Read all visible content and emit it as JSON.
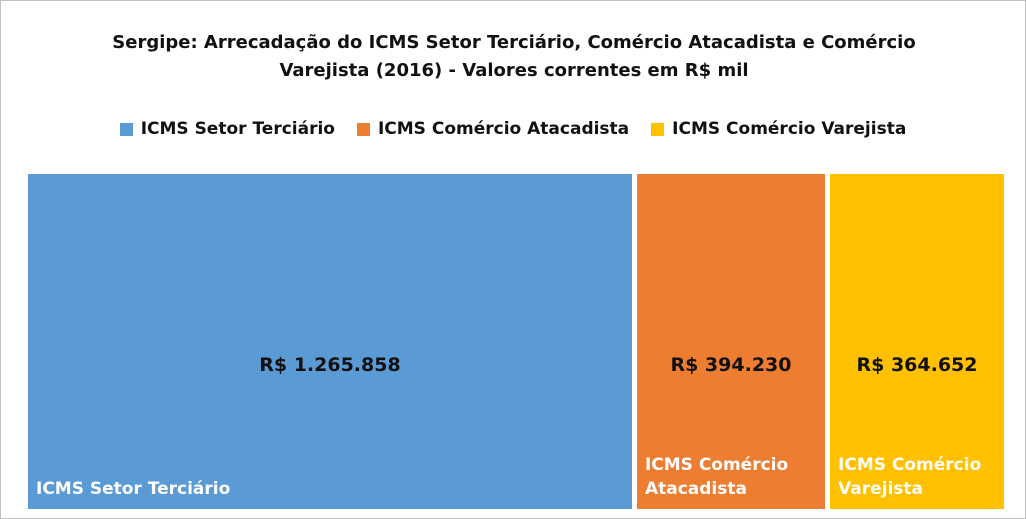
{
  "chart_data": {
    "type": "treemap",
    "title": "Sergipe: Arrecadação do ICMS Setor Terciário, Comércio Atacadista e Comércio Varejista (2016) - Valores correntes em R$ mil",
    "categories": [
      "ICMS Setor Terciário",
      "ICMS Comércio Atacadista",
      "ICMS Comércio Varejista"
    ],
    "values": [
      1265858,
      394230,
      364652
    ],
    "value_labels": [
      "R$ 1.265.858",
      "R$ 394.230",
      "R$ 364.652"
    ],
    "colors": [
      "#5b9bd5",
      "#ed7d31",
      "#ffc000"
    ],
    "legend": "top"
  }
}
